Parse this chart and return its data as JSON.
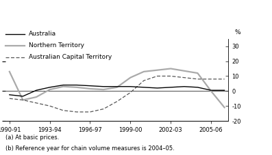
{
  "x_labels": [
    "1990-91",
    "1993-94",
    "1996-97",
    "1999-00",
    "2002-03",
    "2005-06"
  ],
  "x_tick_positions": [
    0,
    3,
    6,
    9,
    12,
    15
  ],
  "australia": [
    -2.5,
    -3.5,
    0.5,
    2.5,
    4.0,
    4.0,
    3.5,
    3.0,
    3.0,
    3.0,
    2.5,
    2.0,
    2.5,
    3.0,
    2.5,
    0.5,
    0.5
  ],
  "northern_territory": [
    13,
    -6,
    -4,
    1,
    3,
    2.5,
    1.5,
    1.0,
    2.5,
    9,
    13,
    14,
    15,
    13.5,
    12,
    0,
    -11
  ],
  "act": [
    -5,
    -6,
    -8,
    -10,
    -13,
    -14,
    -14,
    -12,
    -7,
    -1,
    7,
    10,
    10,
    9,
    8,
    8,
    8
  ],
  "australia_color": "#000000",
  "nt_color": "#aaaaaa",
  "act_color": "#555555",
  "ylim": [
    -20,
    35
  ],
  "yticks": [
    -20,
    -10,
    0,
    10,
    20,
    30
  ],
  "background_color": "#ffffff",
  "legend_labels": [
    "Australia",
    "Northern Territory",
    "Australian Capital Territory"
  ],
  "footnote1": "(a) At basic prices.",
  "footnote2": "(b) Reference year for chain volume measures is 2004–05."
}
